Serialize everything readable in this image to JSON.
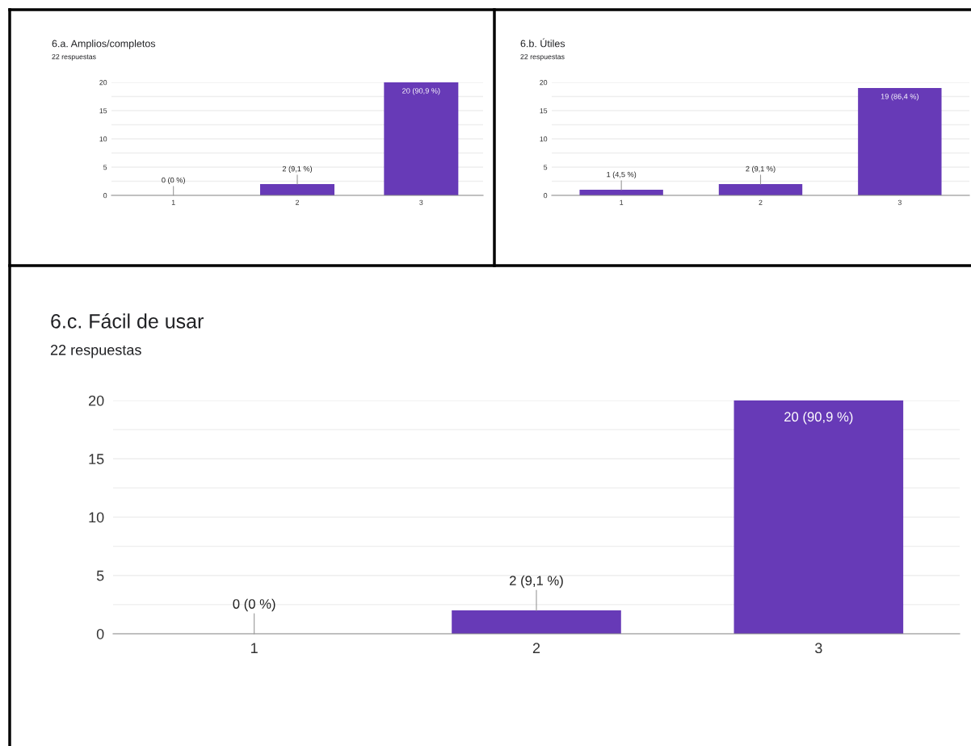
{
  "chart_data": [
    {
      "type": "bar",
      "title": "6.a. Amplios/completos",
      "subtitle": "22 respuestas",
      "categories": [
        "1",
        "2",
        "3"
      ],
      "values": [
        0,
        2,
        20
      ],
      "color": "#673ab7",
      "value_labels": [
        "0 (0 %)",
        "2 (9,1 %)",
        "20 (90,9 %)"
      ],
      "ylim": [
        0,
        20
      ],
      "yticks": [
        0,
        {
          "value": 2.5,
          "label": null
        },
        5,
        {
          "value": 7.5,
          "label": null
        },
        10,
        {
          "value": 12.5,
          "label": null
        },
        15,
        {
          "value": 17.5,
          "label": null
        },
        20
      ],
      "grid": "y"
    },
    {
      "type": "bar",
      "title": "6.b. Útiles",
      "subtitle": "22 respuestas",
      "categories": [
        "1",
        "2",
        "3"
      ],
      "values": [
        1,
        2,
        19
      ],
      "color": "#673ab7",
      "value_labels": [
        "1 (4,5 %)",
        "2 (9,1 %)",
        "19 (86,4 %)"
      ],
      "ylim": [
        0,
        20
      ],
      "yticks": [
        0,
        {
          "value": 2.5,
          "label": null
        },
        5,
        {
          "value": 7.5,
          "label": null
        },
        10,
        {
          "value": 12.5,
          "label": null
        },
        15,
        {
          "value": 17.5,
          "label": null
        },
        20
      ],
      "grid": "y"
    },
    {
      "type": "bar",
      "title": "6.c. Fácil de usar",
      "subtitle": "22 respuestas",
      "categories": [
        "1",
        "2",
        "3"
      ],
      "values": [
        0,
        2,
        20
      ],
      "color": "#673ab7",
      "value_labels": [
        "0 (0 %)",
        "2 (9,1 %)",
        "20 (90,9 %)"
      ],
      "ylim": [
        0,
        20
      ],
      "yticks": [
        0,
        {
          "value": 2.5,
          "label": null
        },
        5,
        {
          "value": 7.5,
          "label": null
        },
        10,
        {
          "value": 12.5,
          "label": null
        },
        15,
        {
          "value": 17.5,
          "label": null
        },
        20
      ],
      "grid": "y"
    }
  ]
}
